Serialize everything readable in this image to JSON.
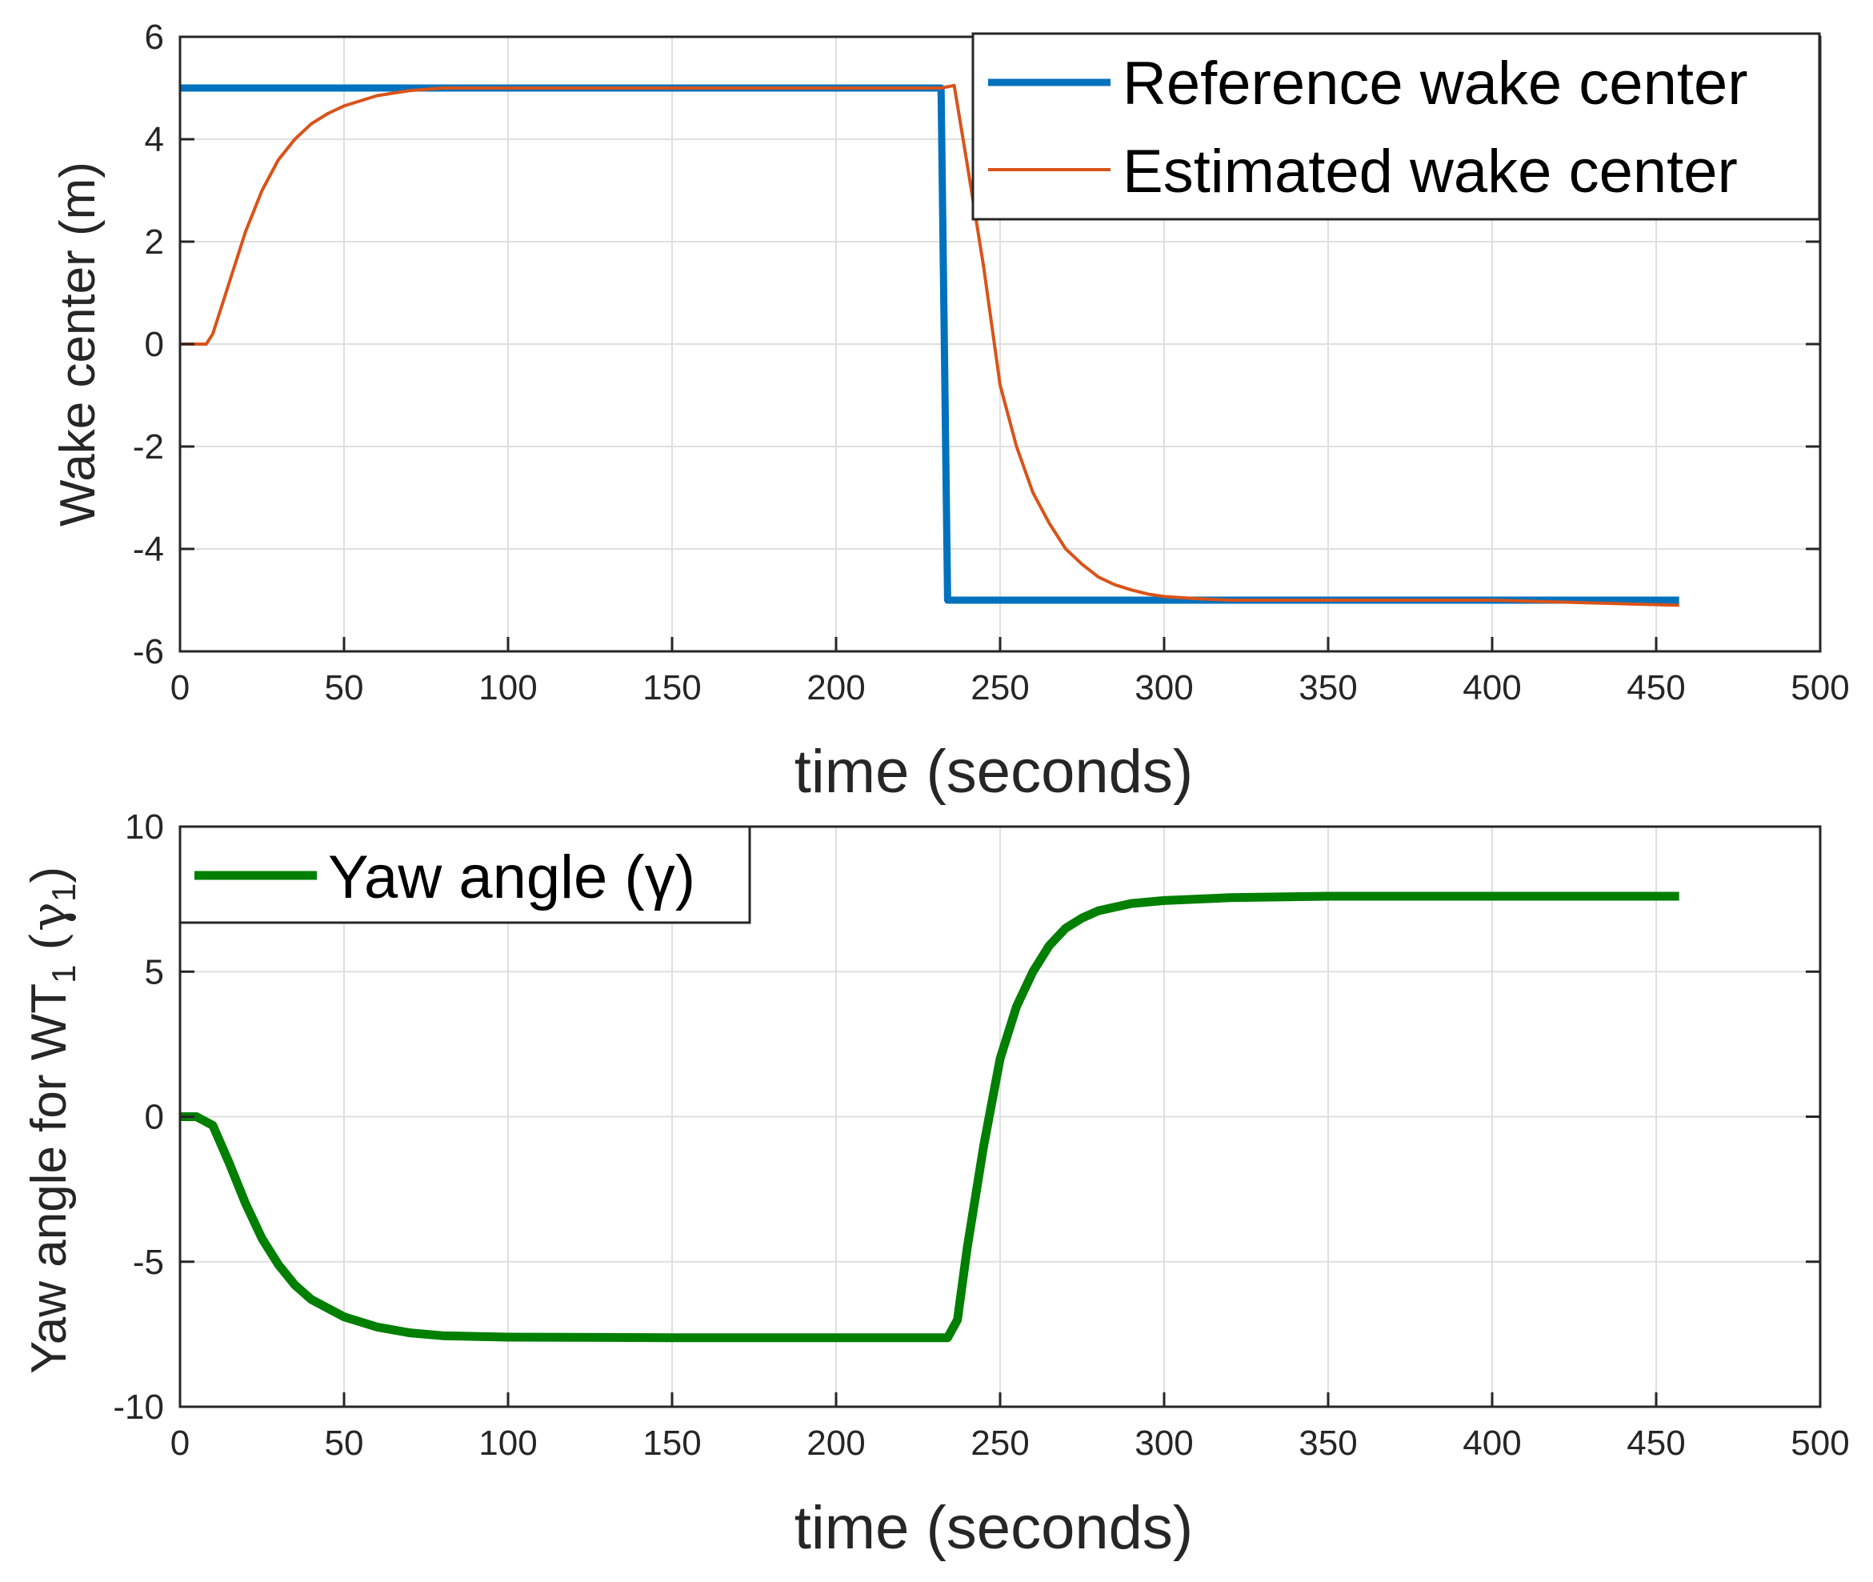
{
  "chart_data": [
    {
      "type": "line",
      "xlabel": "time (seconds)",
      "ylabel": "Wake center (m)",
      "xlim": [
        0,
        500
      ],
      "ylim": [
        -6,
        6
      ],
      "xticks": [
        0,
        50,
        100,
        150,
        200,
        250,
        300,
        350,
        400,
        450,
        500
      ],
      "yticks": [
        6,
        4,
        2,
        0,
        -2,
        -4,
        -6
      ],
      "legend_position": "top-right",
      "series": [
        {
          "name": "Reference wake center",
          "color": "#0072bd",
          "x": [
            0,
            232,
            232,
            234,
            457
          ],
          "y": [
            5,
            5,
            5,
            -5,
            -5
          ]
        },
        {
          "name": "Estimated wake center",
          "color": "#d95319",
          "x": [
            0,
            8,
            10,
            15,
            20,
            25,
            30,
            35,
            40,
            45,
            50,
            55,
            60,
            65,
            70,
            80,
            90,
            100,
            150,
            200,
            232,
            236,
            240,
            245,
            250,
            255,
            260,
            265,
            270,
            275,
            280,
            285,
            290,
            295,
            300,
            310,
            320,
            350,
            400,
            457
          ],
          "y": [
            0,
            0,
            0.2,
            1.2,
            2.2,
            3.0,
            3.6,
            4.0,
            4.3,
            4.5,
            4.65,
            4.75,
            4.85,
            4.9,
            4.95,
            5.0,
            5.0,
            5.0,
            5.0,
            5.0,
            5.0,
            5.05,
            3.5,
            1.5,
            -0.8,
            -2.0,
            -2.9,
            -3.5,
            -4.0,
            -4.3,
            -4.55,
            -4.7,
            -4.8,
            -4.88,
            -4.93,
            -4.97,
            -5.0,
            -5.0,
            -5.0,
            -5.1
          ]
        }
      ]
    },
    {
      "type": "line",
      "xlabel": "time (seconds)",
      "ylabel": "Yaw angle for WT",
      "ylabel_sub": "1",
      "ylabel_gamma": "(γ",
      "ylabel_gamma_sub": "1",
      "ylabel_close": ")",
      "xlim": [
        0,
        500
      ],
      "ylim": [
        -10,
        10
      ],
      "xticks": [
        0,
        50,
        100,
        150,
        200,
        250,
        300,
        350,
        400,
        450,
        500
      ],
      "yticks": [
        10,
        5,
        0,
        -5,
        -10
      ],
      "legend_position": "top-left",
      "series": [
        {
          "name": "Yaw angle (γ)",
          "color": "#007f00",
          "x": [
            0,
            5,
            10,
            15,
            20,
            25,
            30,
            35,
            40,
            50,
            60,
            70,
            80,
            100,
            150,
            200,
            234,
            237,
            240,
            245,
            250,
            255,
            260,
            265,
            270,
            275,
            280,
            290,
            300,
            320,
            350,
            400,
            457
          ],
          "y": [
            0,
            0,
            -0.3,
            -1.6,
            -3.0,
            -4.2,
            -5.1,
            -5.8,
            -6.3,
            -6.9,
            -7.25,
            -7.45,
            -7.55,
            -7.6,
            -7.62,
            -7.62,
            -7.62,
            -7.0,
            -4.5,
            -1.0,
            2.0,
            3.8,
            5.0,
            5.9,
            6.5,
            6.85,
            7.1,
            7.35,
            7.45,
            7.55,
            7.6,
            7.6,
            7.6
          ]
        }
      ]
    }
  ]
}
